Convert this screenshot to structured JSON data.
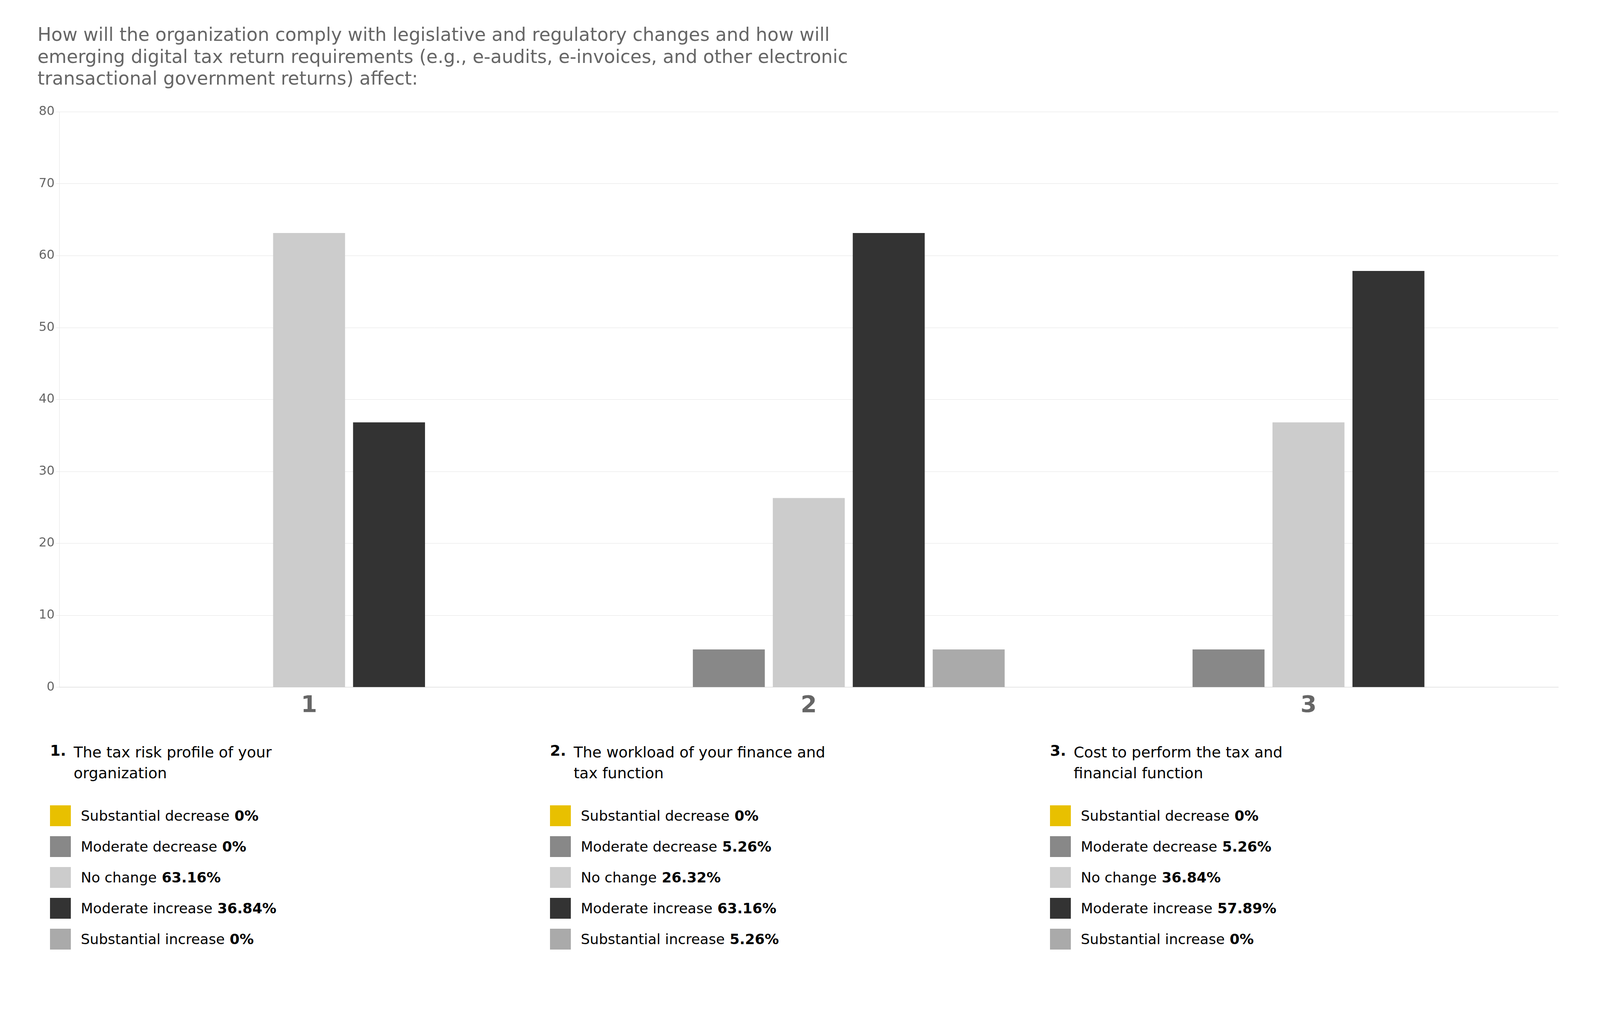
{
  "chart_data": {
    "type": "bar",
    "title": "How will the organization comply with legislative and regulatory changes and how will\nemerging digital tax return requirements (e.g., e-audits, e-invoices, and other electronic\ntransactional government returns) affect:",
    "categories": [
      "1",
      "2",
      "3"
    ],
    "series": [
      {
        "name": "Substantial decrease",
        "color": "#e8c000",
        "values": [
          0,
          0,
          0
        ],
        "value_labels": [
          "0%",
          "0%",
          "0%"
        ]
      },
      {
        "name": "Moderate decrease",
        "color": "#888888",
        "values": [
          0,
          5.26,
          5.26
        ],
        "value_labels": [
          "0%",
          "5.26%",
          "5.26%"
        ]
      },
      {
        "name": "No change",
        "color": "#cccccc",
        "values": [
          63.16,
          26.32,
          36.84
        ],
        "value_labels": [
          "63.16%",
          "26.32%",
          "36.84%"
        ]
      },
      {
        "name": "Moderate increase",
        "color": "#333333",
        "values": [
          36.84,
          63.16,
          57.89
        ],
        "value_labels": [
          "36.84%",
          "63.16%",
          "57.89%"
        ]
      },
      {
        "name": "Substantial increase",
        "color": "#aaaaaa",
        "values": [
          0,
          5.26,
          0
        ],
        "value_labels": [
          "0%",
          "5.26%",
          "0%"
        ]
      }
    ],
    "annotations": [
      {
        "label": "1.",
        "text": "The tax risk profile of your\norganization"
      },
      {
        "label": "2.",
        "text": "The workload of your finance and\ntax function"
      },
      {
        "label": "3.",
        "text": "Cost to perform the tax and\nfinancial function"
      }
    ],
    "ylim": [
      0,
      80
    ],
    "yticks": [
      0,
      10,
      20,
      30,
      40,
      50,
      60,
      70,
      80
    ],
    "grid": true,
    "legend": "bottom"
  }
}
